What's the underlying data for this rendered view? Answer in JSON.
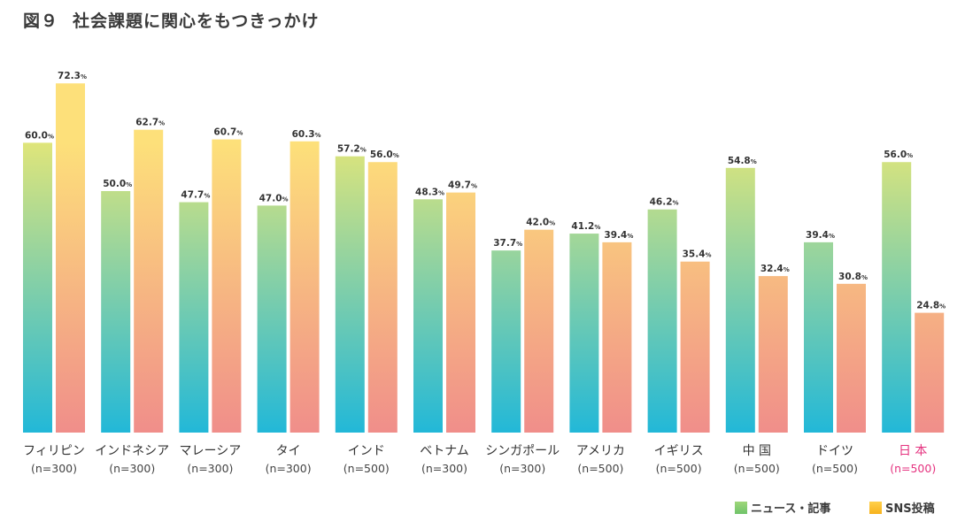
{
  "title": {
    "figure": "図９",
    "text": "社会課題に関心をもつきっかけ"
  },
  "colors": {
    "news_top": "#dfe57a",
    "news_bottom": "#22b8d8",
    "sns_top": "#fde07a",
    "sns_bottom": "#f08e8a",
    "highlight": "#e5327f"
  },
  "chart_data": {
    "type": "bar",
    "title": "社会課題に関心をもつきっかけ",
    "xlabel": "",
    "ylabel": "",
    "ylim": [
      0,
      80
    ],
    "grid": false,
    "legend_position": "bottom-right",
    "categories": [
      {
        "name": "フィリピン",
        "n": "(n=300)"
      },
      {
        "name": "インドネシア",
        "n": "(n=300)"
      },
      {
        "name": "マレーシア",
        "n": "(n=300)"
      },
      {
        "name": "タイ",
        "n": "(n=300)"
      },
      {
        "name": "インド",
        "n": "(n=500)"
      },
      {
        "name": "ベトナム",
        "n": "(n=300)"
      },
      {
        "name": "シンガポール",
        "n": "(n=300)"
      },
      {
        "name": "アメリカ",
        "n": "(n=500)"
      },
      {
        "name": "イギリス",
        "n": "(n=500)"
      },
      {
        "name": "中 国",
        "n": "(n=500)"
      },
      {
        "name": "ドイツ",
        "n": "(n=500)"
      },
      {
        "name": "日 本",
        "n": "(n=500)",
        "highlight": true
      }
    ],
    "series": [
      {
        "name": "ニュース・記事",
        "values": [
          60.0,
          50.0,
          47.7,
          47.0,
          57.2,
          48.3,
          37.7,
          41.2,
          46.2,
          54.8,
          39.4,
          56.0
        ]
      },
      {
        "name": "SNS投稿",
        "values": [
          72.3,
          62.7,
          60.7,
          60.3,
          56.0,
          49.7,
          42.0,
          39.4,
          35.4,
          32.4,
          30.8,
          24.8
        ]
      }
    ],
    "unit": "%"
  }
}
